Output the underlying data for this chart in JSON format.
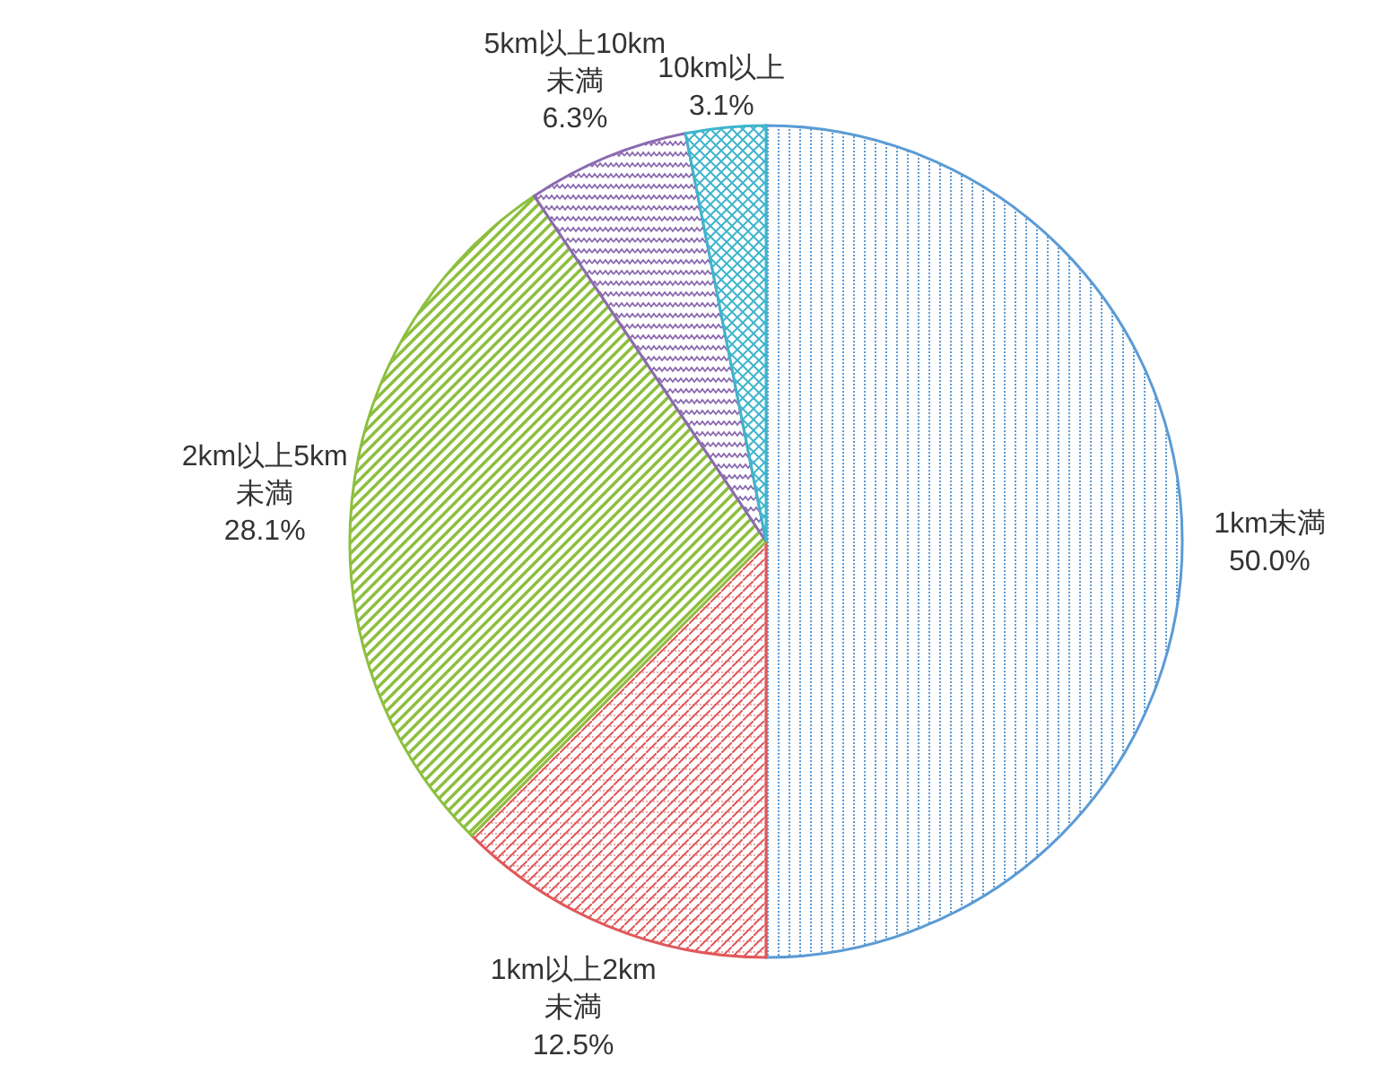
{
  "chart_data": {
    "type": "pie",
    "categories": [
      "1km未満",
      "1km以上2km未満",
      "2km以上5km未満",
      "5km以上10km未満",
      "10km以上"
    ],
    "values": [
      50.0,
      12.5,
      28.1,
      6.3,
      3.1
    ],
    "colors": [
      "#5b9bd5",
      "#e0585a",
      "#8dbf3f",
      "#8b6bb0",
      "#3fb5cc"
    ],
    "value_labels": [
      "50.0%",
      "12.5%",
      "28.1%",
      "6.3%",
      "3.1%"
    ]
  }
}
